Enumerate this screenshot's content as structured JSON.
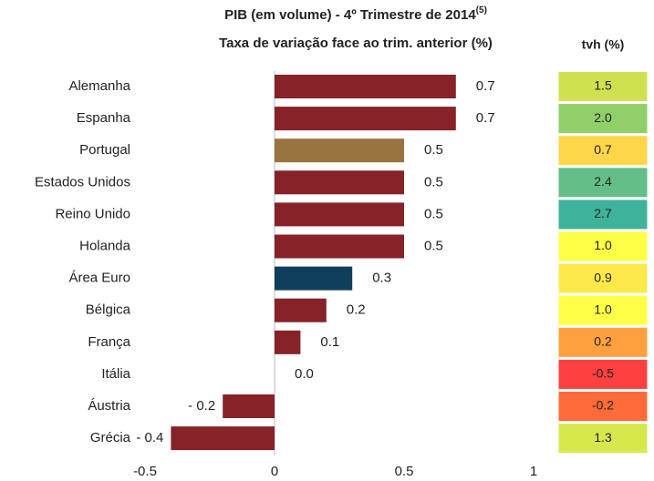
{
  "chart_data": {
    "type": "bar",
    "orientation": "horizontal",
    "title": "PIB (em volume) - 4º Trimestre de 2014",
    "title_note": "(5)",
    "subtitle": "Taxa de variação face ao trim. anterior (%)",
    "categories": [
      "Alemanha",
      "Espanha",
      "Portugal",
      "Estados Unidos",
      "Reino Unido",
      "Holanda",
      "Área Euro",
      "Bélgica",
      "França",
      "Itália",
      "Áustria",
      "Grécia"
    ],
    "values": [
      0.7,
      0.7,
      0.5,
      0.5,
      0.5,
      0.5,
      0.3,
      0.2,
      0.1,
      0.0,
      -0.2,
      -0.4
    ],
    "value_labels": [
      "0.7",
      "0.7",
      "0.5",
      "0.5",
      "0.5",
      "0.5",
      "0.3",
      "0.2",
      "0.1",
      "0.0",
      "- 0.2",
      "- 0.4"
    ],
    "colors": [
      "#862228",
      "#862228",
      "#9a7440",
      "#862228",
      "#862228",
      "#862228",
      "#0f3e5c",
      "#862228",
      "#862228",
      "#862228",
      "#862228",
      "#862228"
    ],
    "xlim": [
      -0.5,
      1
    ],
    "xticks": [
      -0.5,
      0,
      0.5,
      1
    ],
    "grid": false,
    "table": {
      "header": "tvh (%)",
      "values": [
        "1.5",
        "2.0",
        "0.7",
        "2.4",
        "2.7",
        "1.0",
        "0.9",
        "1.0",
        "0.2",
        "-0.5",
        "-0.2",
        "1.3"
      ],
      "colors": [
        "#cfe14f",
        "#90cf6a",
        "#ffd54a",
        "#63bf86",
        "#3fb39a",
        "#ffff48",
        "#ffe94a",
        "#ffff48",
        "#ffa040",
        "#ff4040",
        "#ff6a3a",
        "#d7e84c"
      ]
    }
  }
}
